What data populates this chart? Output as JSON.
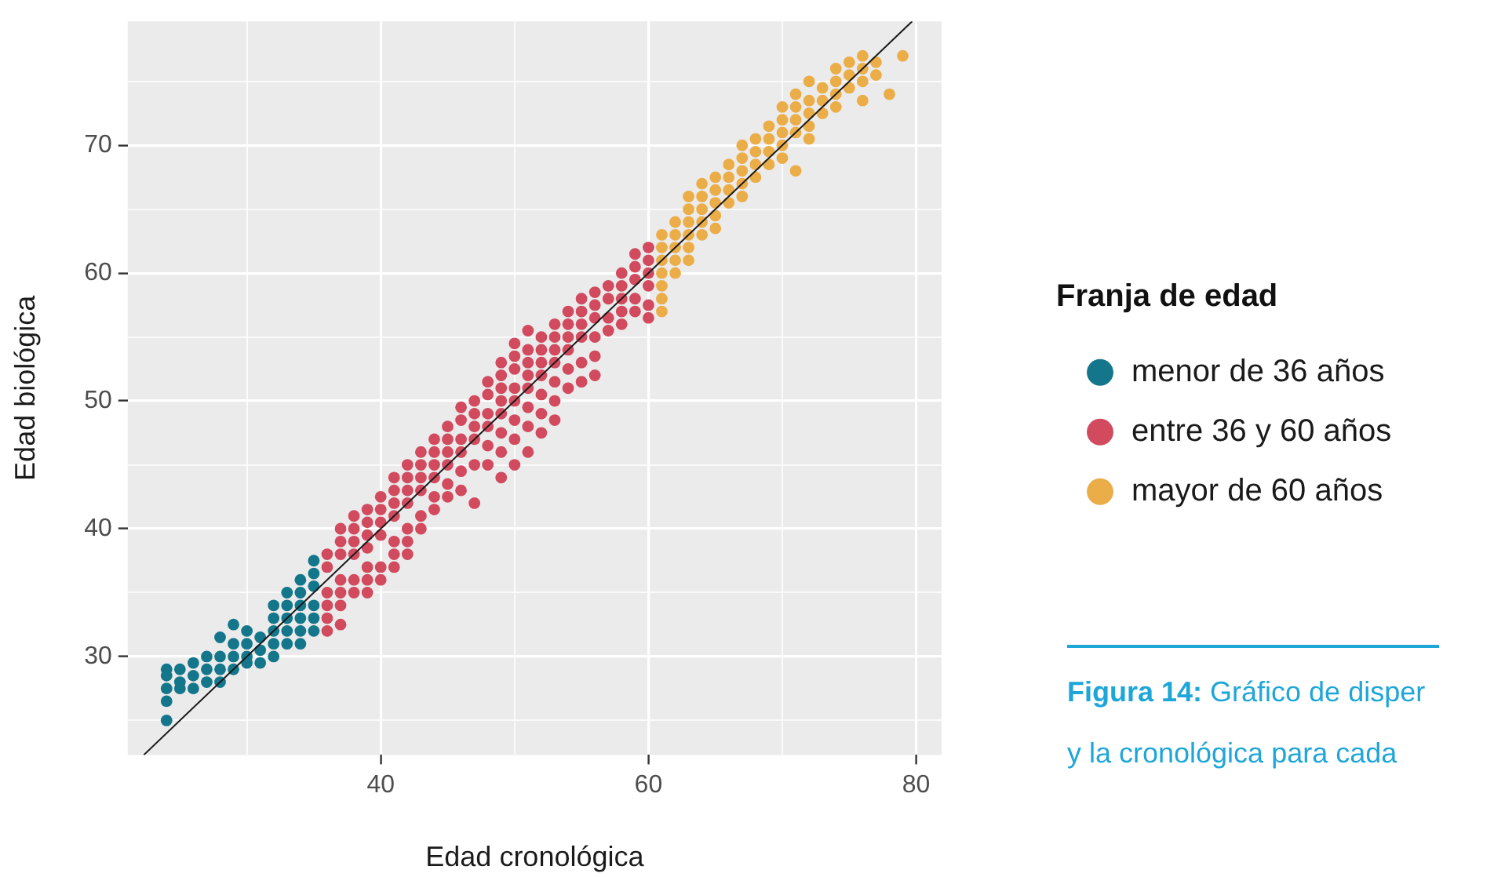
{
  "chart_data": {
    "type": "scatter",
    "xlabel": "Edad cronológica",
    "ylabel": "Edad biológica",
    "legend_title": "Franja de edad",
    "legend": "right",
    "grid": true,
    "marker": "circle",
    "xlim": [
      21.1,
      81.9
    ],
    "ylim": [
      22.3,
      79.7
    ],
    "xticks": [
      {
        "value": 30,
        "label": null
      },
      40,
      {
        "value": 50,
        "label": null
      },
      60,
      {
        "value": 70,
        "label": null
      },
      80
    ],
    "yticks": [
      {
        "value": 25,
        "label": null
      },
      30,
      {
        "value": 35,
        "label": null
      },
      40,
      {
        "value": 45,
        "label": null
      },
      50,
      {
        "value": 55,
        "label": null
      },
      60,
      {
        "value": 65,
        "label": null
      },
      70,
      {
        "value": 75,
        "label": null
      }
    ],
    "series": [
      {
        "name": "menor de 36 años",
        "color": "#13768b",
        "x": [
          24,
          24,
          24,
          24,
          24,
          25,
          25,
          25,
          26,
          26,
          26,
          27,
          27,
          27,
          28,
          28,
          28,
          28,
          29,
          29,
          29,
          29,
          30,
          30,
          30,
          30,
          31,
          31,
          31,
          32,
          32,
          32,
          32,
          32,
          33,
          33,
          33,
          33,
          33,
          34,
          34,
          34,
          34,
          34,
          34,
          35,
          35,
          35,
          35,
          35,
          35
        ],
        "values": [
          29,
          28.5,
          27.5,
          26.5,
          25,
          29,
          28,
          27.5,
          29.5,
          28.5,
          27.5,
          30,
          29,
          28,
          31.5,
          30,
          29,
          28,
          32.5,
          31,
          30,
          29,
          32,
          31,
          30,
          29.5,
          31.5,
          30.5,
          29.5,
          34,
          33,
          32,
          31,
          30,
          35,
          34,
          33,
          32,
          31,
          36,
          35,
          34,
          33,
          32,
          31,
          37.5,
          36.5,
          35.5,
          34,
          33,
          32
        ]
      },
      {
        "name": "entre 36 y 60 años",
        "color": "#d14a5e",
        "x": [
          36,
          36,
          36,
          36,
          36,
          36,
          37,
          37,
          37,
          37,
          37,
          37,
          37,
          38,
          38,
          38,
          38,
          38,
          38,
          39,
          39,
          39,
          39,
          39,
          39,
          39,
          40,
          40,
          40,
          40,
          40,
          40,
          41,
          41,
          41,
          41,
          41,
          41,
          41,
          42,
          42,
          42,
          42,
          42,
          42,
          42,
          43,
          43,
          43,
          43,
          43,
          43,
          44,
          44,
          44,
          44,
          44,
          44,
          45,
          45,
          45,
          45,
          45,
          45,
          46,
          46,
          46,
          46,
          46,
          46,
          47,
          47,
          47,
          47,
          47,
          47,
          48,
          48,
          48,
          48,
          48,
          48,
          49,
          49,
          49,
          49,
          49,
          49,
          49,
          49,
          50,
          50,
          50,
          50,
          50,
          50,
          50,
          50,
          51,
          51,
          51,
          51,
          51,
          51,
          51,
          51,
          52,
          52,
          52,
          52,
          52,
          52,
          52,
          53,
          53,
          53,
          53,
          53,
          53,
          53,
          54,
          54,
          54,
          54,
          54,
          54,
          55,
          55,
          55,
          55,
          55,
          55,
          56,
          56,
          56,
          56,
          56,
          56,
          57,
          57,
          57,
          57,
          58,
          58,
          58,
          58,
          58,
          59,
          59,
          59,
          59,
          59,
          60,
          60,
          60,
          60,
          60,
          60
        ],
        "values": [
          38,
          37,
          35,
          34,
          33,
          32,
          40,
          39,
          38,
          36,
          35,
          34,
          32.5,
          41,
          40,
          39,
          38,
          36,
          35,
          41.5,
          40.5,
          39.5,
          38.5,
          37,
          36,
          35,
          42.5,
          41.5,
          40.5,
          39.5,
          37,
          36,
          44,
          43,
          42,
          41,
          39,
          38,
          37,
          45,
          44,
          43,
          42,
          40,
          39,
          38,
          46,
          45,
          44,
          43,
          41,
          40,
          47,
          46,
          45,
          44,
          42.5,
          41.5,
          48,
          47,
          46,
          45,
          43.5,
          42.5,
          49.5,
          48.5,
          47,
          46,
          44.5,
          43,
          50,
          49,
          48,
          47,
          45,
          42,
          51.5,
          50.5,
          49,
          48,
          46.5,
          45,
          53,
          52,
          51,
          50,
          49,
          47.5,
          46,
          44,
          54.5,
          53.5,
          52.5,
          51,
          50,
          48.5,
          47,
          45,
          55.5,
          54,
          53,
          52,
          51,
          49.5,
          48,
          46,
          55,
          54,
          53,
          52,
          50.5,
          49,
          47.5,
          56,
          55,
          54,
          53,
          51.5,
          50,
          48.5,
          57,
          56,
          55,
          54,
          52.5,
          51,
          58,
          57,
          56,
          55,
          53,
          51.5,
          58.5,
          57.5,
          56.5,
          55,
          53.5,
          52,
          59,
          58,
          56.5,
          55.5,
          60,
          59,
          58,
          57,
          56,
          61.5,
          60.5,
          59.5,
          58,
          57,
          62,
          61,
          60,
          59,
          57.5,
          56.5
        ]
      },
      {
        "name": "mayor de 60 años",
        "color": "#ebad48",
        "x": [
          61,
          61,
          61,
          61,
          61,
          61,
          61,
          62,
          62,
          62,
          62,
          62,
          63,
          63,
          63,
          63,
          63,
          63,
          64,
          64,
          64,
          64,
          64,
          65,
          65,
          65,
          65,
          65,
          66,
          66,
          66,
          66,
          67,
          67,
          67,
          67,
          67,
          68,
          68,
          68,
          68,
          69,
          69,
          69,
          69,
          70,
          70,
          70,
          70,
          70,
          71,
          71,
          71,
          71,
          71,
          72,
          72,
          72,
          72,
          72,
          73,
          73,
          73,
          74,
          74,
          74,
          74,
          75,
          75,
          75,
          76,
          76,
          76,
          76,
          77,
          77,
          78,
          79
        ],
        "values": [
          63,
          62,
          61,
          60,
          59,
          58,
          57,
          64,
          63,
          62,
          61,
          60,
          66,
          65,
          64,
          63,
          62,
          61,
          67,
          66,
          65,
          64,
          63,
          67.5,
          66.5,
          65.5,
          64.5,
          63.5,
          68.5,
          67.5,
          66.5,
          65.5,
          70,
          69,
          68,
          67,
          66,
          70.5,
          69.5,
          68.5,
          67.5,
          71.5,
          70.5,
          69.5,
          68.5,
          73,
          72,
          71,
          70,
          69,
          74,
          73,
          72,
          71,
          68,
          75,
          73.5,
          72.5,
          71.5,
          70.5,
          74.5,
          73.5,
          72.5,
          76,
          75,
          74,
          73,
          76.5,
          75.5,
          74.5,
          77,
          76,
          75,
          73.5,
          76.5,
          75.5,
          74,
          77
        ]
      },
      {
        "type": "line",
        "color": "#1a1a1a",
        "marker": "none",
        "x": [
          22.3,
          79.7
        ],
        "values": [
          22.3,
          79.7
        ]
      }
    ],
    "annotations": [
      "Figura 14: Gráfico de disper",
      "y la cronológica para cada"
    ]
  }
}
